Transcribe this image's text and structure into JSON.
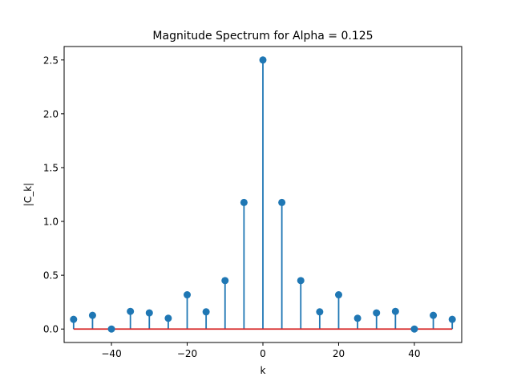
{
  "chart_data": {
    "type": "stem",
    "title": "Magnitude Spectrum for Alpha = 0.125",
    "xlabel": "k",
    "ylabel": "|C_k|",
    "xlim": [
      -52.5,
      52.5
    ],
    "ylim": [
      -0.125,
      2.625
    ],
    "xticks": [
      -40,
      -20,
      0,
      20,
      40
    ],
    "xtick_labels": [
      "−40",
      "−20",
      "0",
      "20",
      "40"
    ],
    "yticks": [
      0.0,
      0.5,
      1.0,
      1.5,
      2.0,
      2.5
    ],
    "ytick_labels": [
      "0.0",
      "0.5",
      "1.0",
      "1.5",
      "2.0",
      "2.5"
    ],
    "grid": false,
    "x": [
      -50,
      -45,
      -40,
      -35,
      -30,
      -25,
      -20,
      -15,
      -10,
      -5,
      0,
      5,
      10,
      15,
      20,
      25,
      30,
      35,
      40,
      45,
      50
    ],
    "values": [
      0.09,
      0.127,
      0.0,
      0.164,
      0.15,
      0.1,
      0.318,
      0.16,
      0.45,
      1.176,
      2.5,
      1.176,
      0.45,
      0.16,
      0.318,
      0.1,
      0.15,
      0.164,
      0.0,
      0.127,
      0.09
    ],
    "colors": {
      "stem": "#1f77b4",
      "marker": "#1f77b4",
      "baseline": "#d62728"
    }
  }
}
